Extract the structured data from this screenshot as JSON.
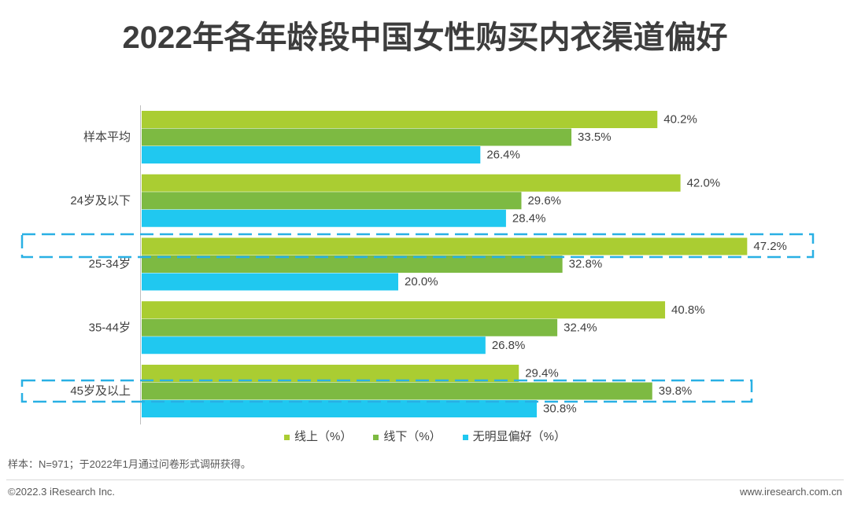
{
  "chart_data": {
    "type": "bar",
    "orientation": "horizontal",
    "title": "2022年各年龄段中国女性购买内衣渠道偏好",
    "categories": [
      "样本平均",
      "24岁及以下",
      "25-34岁",
      "35-44岁",
      "45岁及以上"
    ],
    "series": [
      {
        "name": "线上（%）",
        "color": "#AACD32",
        "values": [
          40.2,
          42.0,
          47.2,
          40.8,
          29.4
        ],
        "labels": [
          "40.2%",
          "42.0%",
          "47.2%",
          "40.8%",
          "29.4%"
        ]
      },
      {
        "name": "线下（%）",
        "color": "#7DBA42",
        "values": [
          33.5,
          29.6,
          32.8,
          32.4,
          39.8
        ],
        "labels": [
          "33.5%",
          "29.6%",
          "32.8%",
          "32.4%",
          "39.8%"
        ]
      },
      {
        "name": "无明显偏好（%）",
        "color": "#20C8F0",
        "values": [
          26.4,
          28.4,
          20.0,
          26.8,
          30.8
        ],
        "labels": [
          "26.4%",
          "28.4%",
          "20.0%",
          "26.8%",
          "30.8%"
        ]
      }
    ],
    "xlim": [
      0,
      50
    ],
    "grid": false,
    "legend_position": "bottom",
    "highlight_color": "#29B0E4"
  },
  "footer": {
    "note": "样本：N=971；于2022年1月通过问卷形式调研获得。",
    "copyright": "©2022.3 iResearch Inc.",
    "website": "www.iresearch.com.cn"
  }
}
